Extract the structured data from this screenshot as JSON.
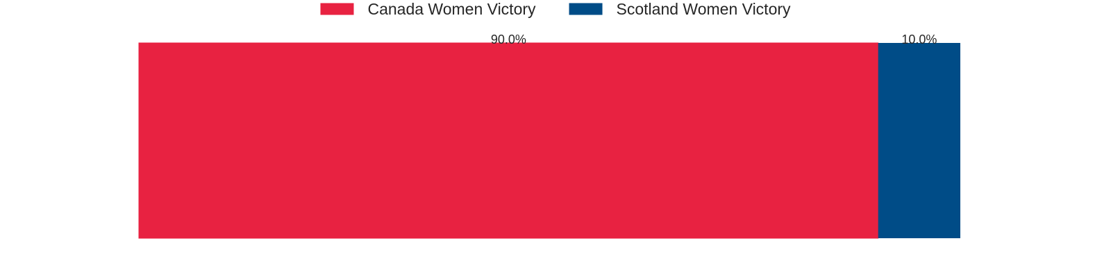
{
  "chart_data": {
    "type": "bar",
    "orientation": "horizontal",
    "stacked": true,
    "categories": [
      ""
    ],
    "series": [
      {
        "name": "Canada Women Victory",
        "values": [
          90.0
        ],
        "label": "90.0%",
        "color": "#E82241"
      },
      {
        "name": "Scotland Women Victory",
        "values": [
          10.0
        ],
        "label": "10.0%",
        "color": "#004C87"
      }
    ],
    "xlim": [
      0,
      100
    ],
    "title": "",
    "xlabel": "",
    "ylabel": "",
    "grid": false,
    "legend": "top-center"
  }
}
